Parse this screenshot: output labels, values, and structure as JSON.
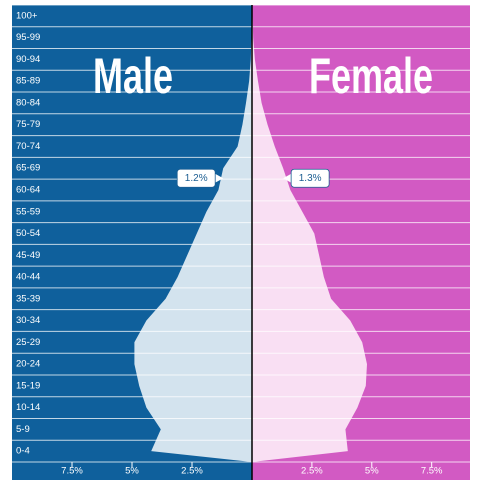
{
  "chart_data": {
    "type": "pyramid",
    "categories": [
      "0-4",
      "5-9",
      "10-14",
      "15-19",
      "20-24",
      "25-29",
      "30-34",
      "35-39",
      "40-44",
      "45-49",
      "50-54",
      "55-59",
      "60-64",
      "65-69",
      "70-74",
      "75-79",
      "80-84",
      "85-89",
      "90-94",
      "95-99",
      "100+"
    ],
    "series": [
      {
        "name": "Male",
        "side": "left",
        "color": "#0f609c",
        "fill": "#d3e3ee",
        "xlim": [
          0,
          10
        ],
        "values": [
          4.2,
          3.8,
          4.4,
          4.7,
          4.9,
          4.9,
          4.4,
          3.6,
          3.1,
          2.7,
          2.3,
          1.9,
          1.4,
          1.2,
          0.6,
          0.4,
          0.25,
          0.12,
          0.05,
          0.02,
          0.01
        ],
        "value_labels": [
          null,
          null,
          null,
          null,
          null,
          null,
          null,
          null,
          null,
          null,
          null,
          null,
          null,
          "1.2%",
          null,
          null,
          null,
          null,
          null,
          null,
          null
        ]
      },
      {
        "name": "Female",
        "side": "right",
        "color": "#d25ac3",
        "fill": "#f9dff3",
        "xlim": [
          0,
          9.1
        ],
        "values": [
          4.0,
          3.9,
          4.4,
          4.75,
          4.8,
          4.6,
          4.1,
          3.3,
          3.0,
          2.8,
          2.6,
          2.1,
          1.6,
          1.3,
          0.95,
          0.65,
          0.4,
          0.25,
          0.12,
          0.05,
          0.02
        ],
        "value_labels": [
          null,
          null,
          null,
          null,
          null,
          null,
          null,
          null,
          null,
          null,
          null,
          null,
          null,
          "1.3%",
          null,
          null,
          null,
          null,
          null,
          null,
          null
        ]
      }
    ],
    "xticks": [
      {
        "value": 2.5,
        "label": "2.5%"
      },
      {
        "value": 5,
        "label": "5%"
      },
      {
        "value": 7.5,
        "label": "7.5%"
      }
    ]
  }
}
